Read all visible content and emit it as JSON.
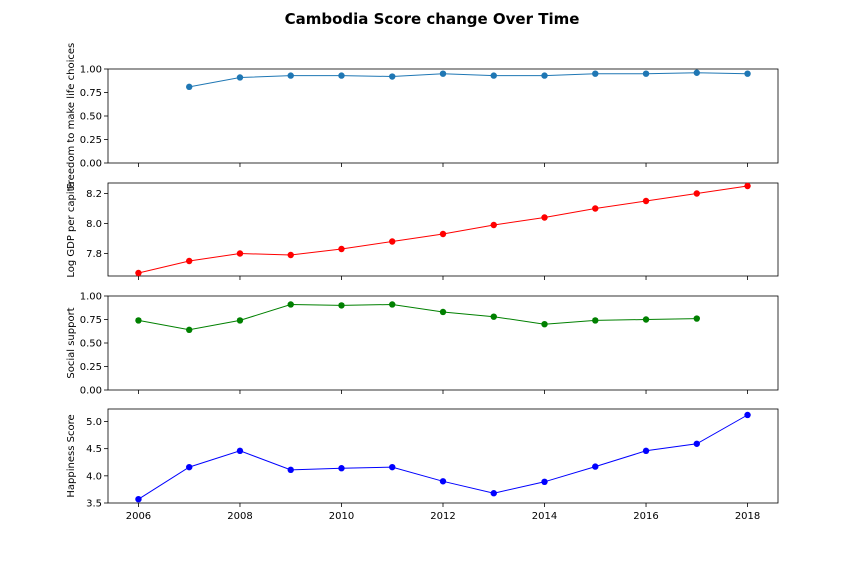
{
  "figure": {
    "title": "Cambodia Score change Over Time"
  },
  "chart_data": [
    {
      "type": "line",
      "ylabel": "Freedom to make life choices",
      "color": "#1f77b4",
      "x": [
        2007,
        2008,
        2009,
        2010,
        2011,
        2012,
        2013,
        2014,
        2015,
        2016,
        2017,
        2018
      ],
      "values": [
        0.81,
        0.91,
        0.93,
        0.93,
        0.92,
        0.95,
        0.93,
        0.93,
        0.95,
        0.95,
        0.96,
        0.95
      ],
      "ylim": [
        0,
        1.0
      ],
      "yticks": [
        0.0,
        0.25,
        0.5,
        0.75,
        1.0
      ],
      "ytick_labels": [
        "0.00",
        "0.25",
        "0.50",
        "0.75",
        "1.00"
      ],
      "xlim": [
        2005.4,
        2018.6
      ]
    },
    {
      "type": "line",
      "ylabel": "Log GDP per capita",
      "color": "#ff0000",
      "x": [
        2006,
        2007,
        2008,
        2009,
        2010,
        2011,
        2012,
        2013,
        2014,
        2015,
        2016,
        2017,
        2018
      ],
      "values": [
        7.67,
        7.75,
        7.8,
        7.79,
        7.83,
        7.88,
        7.93,
        7.99,
        8.04,
        8.1,
        8.15,
        8.2,
        8.25
      ],
      "ylim": [
        7.65,
        8.27
      ],
      "yticks": [
        7.8,
        8.0,
        8.2
      ],
      "ytick_labels": [
        "7.8",
        "8.0",
        "8.2"
      ],
      "xlim": [
        2005.4,
        2018.6
      ]
    },
    {
      "type": "line",
      "ylabel": "Social support",
      "color": "#008000",
      "x": [
        2006,
        2007,
        2008,
        2009,
        2010,
        2011,
        2012,
        2013,
        2014,
        2015,
        2016,
        2017
      ],
      "values": [
        0.74,
        0.64,
        0.74,
        0.91,
        0.9,
        0.91,
        0.83,
        0.78,
        0.7,
        0.74,
        0.75,
        0.76
      ],
      "ylim": [
        0,
        1.0
      ],
      "yticks": [
        0.0,
        0.25,
        0.5,
        0.75,
        1.0
      ],
      "ytick_labels": [
        "0.00",
        "0.25",
        "0.50",
        "0.75",
        "1.00"
      ],
      "xlim": [
        2005.4,
        2018.6
      ]
    },
    {
      "type": "line",
      "ylabel": "Happiness Score",
      "color": "#0000ff",
      "x": [
        2006,
        2007,
        2008,
        2009,
        2010,
        2011,
        2012,
        2013,
        2014,
        2015,
        2016,
        2017,
        2018
      ],
      "values": [
        3.57,
        4.16,
        4.46,
        4.11,
        4.14,
        4.16,
        3.9,
        3.68,
        3.89,
        4.17,
        4.46,
        4.59,
        5.12
      ],
      "ylim": [
        3.5,
        5.23
      ],
      "yticks": [
        3.5,
        4.0,
        4.5,
        5.0
      ],
      "ytick_labels": [
        "3.5",
        "4.0",
        "4.5",
        "5.0"
      ],
      "xlim": [
        2005.4,
        2018.6
      ],
      "xticks": [
        2006,
        2008,
        2010,
        2012,
        2014,
        2016,
        2018
      ],
      "xtick_labels": [
        "2006",
        "2008",
        "2010",
        "2012",
        "2014",
        "2016",
        "2018"
      ]
    }
  ]
}
